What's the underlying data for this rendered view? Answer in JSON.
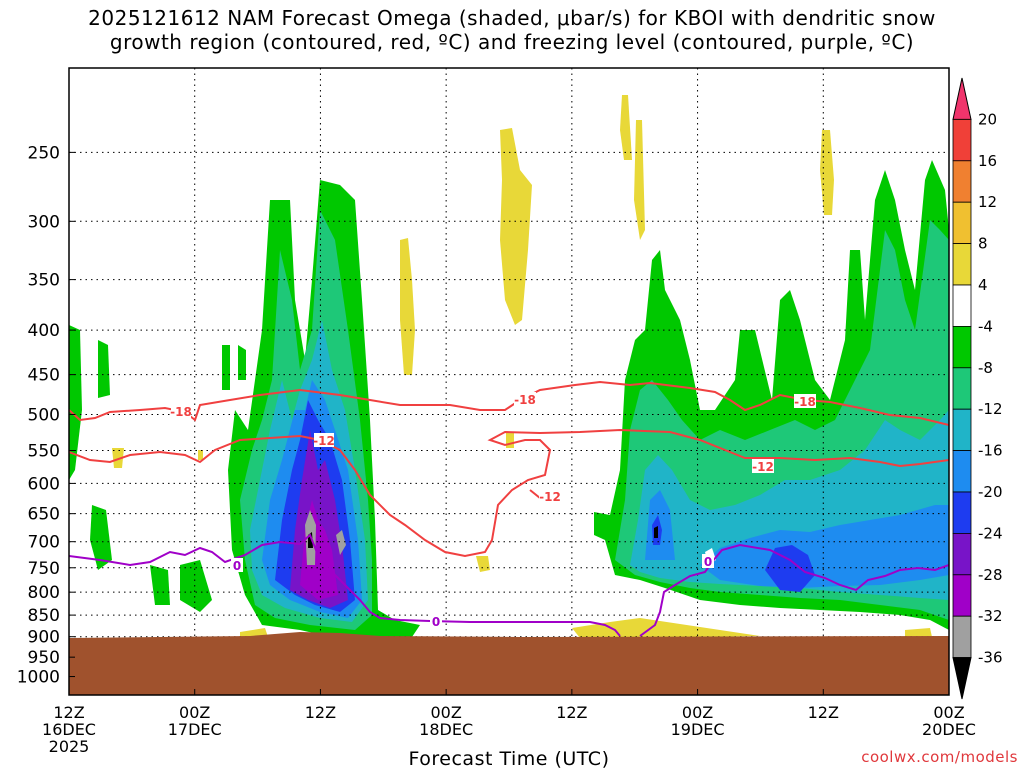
{
  "title_lines": [
    "2025121612 NAM Forecast Omega (shaded, μbar/s) for KBOI with dendritic snow",
    "growth region (contoured, red, ºC) and freezing level (contoured, purple, ºC)"
  ],
  "watermark": "coolwx.com/models",
  "chart_data": {
    "type": "heatmap",
    "title": "2025121612 NAM Forecast Omega (shaded, μbar/s) for KBOI with dendritic snow growth region (contoured, red, ºC) and freezing level (contoured, purple, ºC)",
    "xlabel": "Forecast Time (UTC)",
    "ylabel": "",
    "y_axis": "pressure (hPa), inverted",
    "ylim": [
      1050,
      200
    ],
    "yticks": [
      "250",
      "300",
      "350",
      "400",
      "450",
      "500",
      "550",
      "600",
      "650",
      "700",
      "750",
      "800",
      "850",
      "900",
      "950",
      "1000"
    ],
    "xticks": [
      {
        "line1": "12Z",
        "line2": "16DEC",
        "line3": "2025"
      },
      {
        "line1": "00Z",
        "line2": "17DEC",
        "line3": ""
      },
      {
        "line1": "12Z",
        "line2": "",
        "line3": ""
      },
      {
        "line1": "00Z",
        "line2": "18DEC",
        "line3": ""
      },
      {
        "line1": "12Z",
        "line2": "",
        "line3": ""
      },
      {
        "line1": "00Z",
        "line2": "19DEC",
        "line3": ""
      },
      {
        "line1": "12Z",
        "line2": "",
        "line3": ""
      },
      {
        "line1": "00Z",
        "line2": "20DEC",
        "line3": ""
      }
    ],
    "grid": true,
    "colorbar": {
      "placement": "right",
      "labels": [
        "20",
        "16",
        "12",
        "8",
        "4",
        "-4",
        "-8",
        "-12",
        "-16",
        "-20",
        "-24",
        "-28",
        "-32",
        "-36"
      ],
      "colors": [
        "#f0346c",
        "#f04038",
        "#f08030",
        "#f0c030",
        "#e8d838",
        "#ffffff",
        "#00c800",
        "#1ec878",
        "#20b4c8",
        "#1e8cf0",
        "#1e3cf0",
        "#7814c8",
        "#a000c8",
        "#a0a0a0",
        "#000000"
      ]
    },
    "terrain_color": "#a0522d",
    "terrain_top_hPa": 900,
    "contour_labels": [
      {
        "text": "-18",
        "color": "#f04040"
      },
      {
        "text": "-12",
        "color": "#f04040"
      },
      {
        "text": "-18",
        "color": "#f04040"
      },
      {
        "text": "-12",
        "color": "#f04040"
      },
      {
        "text": "-18",
        "color": "#f04040"
      },
      {
        "text": "-12",
        "color": "#f04040"
      },
      {
        "text": "0",
        "color": "#a000c8"
      },
      {
        "text": "0",
        "color": "#a000c8"
      },
      {
        "text": "0",
        "color": "#a000c8"
      }
    ]
  }
}
